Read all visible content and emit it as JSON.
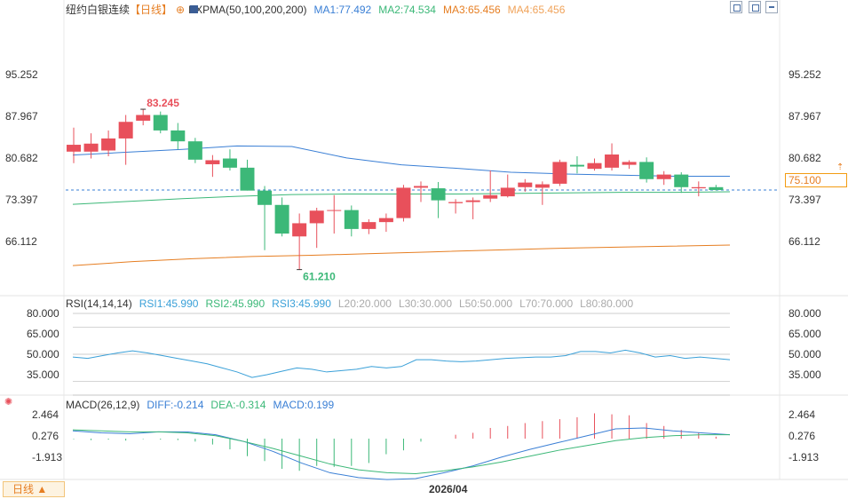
{
  "header": {
    "instrument": "纽约白银连续",
    "period_tag": "【日线】",
    "indicator": "EXPMA(50,100,200,200)",
    "ma1": "MA1:77.492",
    "ma2": "MA2:74.534",
    "ma3": "MA3:65.456",
    "ma4": "MA4:65.456"
  },
  "rsi_header": {
    "name": "RSI(14,14,14)",
    "rsi1": "RSI1:45.990",
    "rsi2": "RSI2:45.990",
    "rsi3": "RSI3:45.990",
    "l20": "L20:20.000",
    "l30": "L30:30.000",
    "l50": "L50:50.000",
    "l70": "L70:70.000",
    "l80": "L80:80.000"
  },
  "macd_header": {
    "name": "MACD(26,12,9)",
    "diff": "DIFF:-0.214",
    "dea": "DEA:-0.314",
    "macd": "MACD:0.199"
  },
  "current_price": "75.100",
  "x_date_label": "2026/04",
  "period_button": "日线 ▲",
  "colors": {
    "up": "#e8505b",
    "down": "#3cb878",
    "ma1": "#3a7fd5",
    "ma2": "#3cb878",
    "ma3": "#e67e22",
    "rsi": "#3aa0d8",
    "diff": "#3a7fd5",
    "dea": "#3cb878"
  },
  "chart_data": [
    {
      "type": "candlestick",
      "title": "纽约白银连续 日线",
      "yticks": [
        "95.252",
        "87.967",
        "80.682",
        "73.397",
        "66.112"
      ],
      "ylim": [
        58.8,
        96.5
      ],
      "high_label": "83.245",
      "low_label": "61.210",
      "candles": [
        {
          "o": 81.8,
          "h": 86.0,
          "l": 79.8,
          "c": 83.0
        },
        {
          "o": 81.8,
          "h": 85.0,
          "l": 80.6,
          "c": 83.2
        },
        {
          "o": 82.0,
          "h": 85.5,
          "l": 81.0,
          "c": 84.1
        },
        {
          "o": 84.1,
          "h": 88.2,
          "l": 79.5,
          "c": 87.0
        },
        {
          "o": 87.2,
          "h": 89.2,
          "l": 86.4,
          "c": 88.2
        },
        {
          "o": 88.2,
          "h": 88.8,
          "l": 85.0,
          "c": 85.5
        },
        {
          "o": 85.5,
          "h": 86.8,
          "l": 82.2,
          "c": 83.6
        },
        {
          "o": 83.6,
          "h": 84.2,
          "l": 79.8,
          "c": 80.4
        },
        {
          "o": 79.6,
          "h": 81.2,
          "l": 77.4,
          "c": 80.3
        },
        {
          "o": 80.6,
          "h": 82.2,
          "l": 78.5,
          "c": 79.0
        },
        {
          "o": 79.0,
          "h": 80.4,
          "l": 75.0,
          "c": 75.0
        },
        {
          "o": 75.0,
          "h": 75.8,
          "l": 64.6,
          "c": 72.5
        },
        {
          "o": 72.5,
          "h": 73.8,
          "l": 67.0,
          "c": 67.5
        },
        {
          "o": 67.0,
          "h": 71.0,
          "l": 61.21,
          "c": 69.3
        },
        {
          "o": 69.3,
          "h": 72.0,
          "l": 65.0,
          "c": 71.5
        },
        {
          "o": 71.5,
          "h": 74.2,
          "l": 67.5,
          "c": 71.6
        },
        {
          "o": 71.6,
          "h": 72.4,
          "l": 67.0,
          "c": 68.3
        },
        {
          "o": 68.3,
          "h": 70.0,
          "l": 67.4,
          "c": 69.5
        },
        {
          "o": 69.5,
          "h": 71.0,
          "l": 67.8,
          "c": 70.2
        },
        {
          "o": 70.2,
          "h": 76.0,
          "l": 69.6,
          "c": 75.5
        },
        {
          "o": 75.5,
          "h": 76.6,
          "l": 73.0,
          "c": 75.8
        },
        {
          "o": 75.4,
          "h": 76.5,
          "l": 70.2,
          "c": 73.3
        },
        {
          "o": 72.8,
          "h": 73.5,
          "l": 71.0,
          "c": 73.0
        },
        {
          "o": 73.0,
          "h": 73.8,
          "l": 70.0,
          "c": 73.3
        },
        {
          "o": 73.6,
          "h": 78.5,
          "l": 73.0,
          "c": 74.2
        },
        {
          "o": 74.0,
          "h": 77.8,
          "l": 73.8,
          "c": 75.5
        },
        {
          "o": 75.6,
          "h": 77.0,
          "l": 74.8,
          "c": 76.4
        },
        {
          "o": 75.5,
          "h": 76.6,
          "l": 72.5,
          "c": 76.1
        },
        {
          "o": 76.2,
          "h": 80.4,
          "l": 75.8,
          "c": 80.0
        },
        {
          "o": 79.5,
          "h": 81.0,
          "l": 78.0,
          "c": 79.2
        },
        {
          "o": 78.8,
          "h": 80.6,
          "l": 78.5,
          "c": 79.8
        },
        {
          "o": 79.0,
          "h": 83.245,
          "l": 78.5,
          "c": 81.3
        },
        {
          "o": 79.5,
          "h": 80.3,
          "l": 78.8,
          "c": 80.0
        },
        {
          "o": 80.0,
          "h": 80.8,
          "l": 76.4,
          "c": 77.0
        },
        {
          "o": 77.0,
          "h": 78.4,
          "l": 76.0,
          "c": 77.8
        },
        {
          "o": 77.8,
          "h": 78.2,
          "l": 74.6,
          "c": 75.6
        },
        {
          "o": 75.4,
          "h": 76.6,
          "l": 74.0,
          "c": 75.6
        },
        {
          "o": 75.6,
          "h": 76.0,
          "l": 75.0,
          "c": 75.1
        }
      ],
      "series": [
        {
          "name": "MA1",
          "values": [
            81.2,
            81.7,
            82.2,
            82.8,
            82.7,
            80.7,
            79.5,
            78.9,
            78.2,
            77.9,
            77.7,
            77.5,
            77.5
          ]
        },
        {
          "name": "MA2",
          "values": [
            72.6,
            73.1,
            73.6,
            74.0,
            74.3,
            74.4,
            74.4,
            74.4,
            74.5,
            74.6,
            74.7,
            74.7,
            74.8
          ]
        },
        {
          "name": "MA3",
          "values": [
            61.9,
            62.6,
            63.1,
            63.5,
            63.7,
            64.0,
            64.3,
            64.6,
            64.9,
            65.1,
            65.3,
            65.5
          ]
        }
      ]
    },
    {
      "type": "line",
      "title": "RSI(14,14,14)",
      "yticks": [
        "80.000",
        "65.000",
        "50.000",
        "35.000"
      ],
      "ylim": [
        20,
        80
      ],
      "reference_lines": [
        80,
        70,
        50,
        30,
        20
      ],
      "series": [
        {
          "name": "RSI1",
          "values": [
            48,
            47,
            49,
            51,
            52.5,
            51,
            49,
            47,
            45,
            43,
            40,
            37,
            33,
            35,
            37.5,
            40,
            39,
            37,
            38,
            39,
            41,
            40,
            41,
            46,
            46,
            45,
            44.5,
            45,
            46,
            47,
            47.5,
            48,
            48,
            49,
            52,
            52,
            51,
            53,
            51,
            48,
            49,
            47,
            48,
            47,
            46
          ]
        }
      ]
    },
    {
      "type": "bar+line",
      "title": "MACD(26,12,9)",
      "yticks": [
        "2.464",
        "0.276",
        "-1.913"
      ],
      "ylim": [
        -4.2,
        3.9
      ],
      "series": [
        {
          "name": "MACD",
          "values": [
            -0.05,
            -0.15,
            -0.1,
            -0.2,
            -0.05,
            -0.1,
            -0.15,
            -0.3,
            -0.6,
            -1.1,
            -1.8,
            -2.3,
            -3.1,
            -3.3,
            -2.8,
            -2.9,
            -2.8,
            -2.5,
            -1.6,
            -1.2,
            -0.3,
            0.0,
            0.4,
            0.6,
            1.1,
            1.3,
            1.6,
            1.8,
            2.0,
            2.2,
            2.6,
            2.5,
            2.4,
            1.6,
            1.3,
            0.9,
            0.6,
            0.2
          ]
        },
        {
          "name": "DIFF",
          "values": [
            0.8,
            0.6,
            0.5,
            0.7,
            0.7,
            0.4,
            -0.3,
            -1.3,
            -2.5,
            -3.5,
            -4.0,
            -4.2,
            -4.1,
            -3.5,
            -2.8,
            -1.9,
            -1.1,
            -0.4,
            0.3,
            1.0,
            1.1,
            0.8,
            0.6,
            0.4
          ]
        },
        {
          "name": "DEA",
          "values": [
            0.9,
            0.8,
            0.7,
            0.7,
            0.6,
            0.3,
            -0.3,
            -1.0,
            -1.8,
            -2.6,
            -3.2,
            -3.5,
            -3.6,
            -3.3,
            -2.9,
            -2.4,
            -1.8,
            -1.2,
            -0.7,
            -0.2,
            0.1,
            0.3,
            0.4,
            0.4
          ]
        }
      ]
    }
  ]
}
